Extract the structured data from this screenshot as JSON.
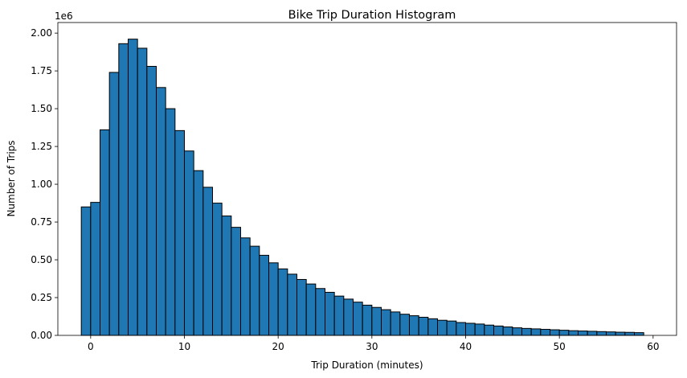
{
  "chart_data": {
    "type": "bar",
    "title": "Bike Trip Duration Histogram",
    "xlabel": "Trip Duration (minutes)",
    "ylabel": "Number of Trips",
    "y_offset_label": "1e6",
    "xlim": [
      -3.5,
      62.5
    ],
    "ylim": [
      0,
      2.07
    ],
    "xticks": [
      0,
      10,
      20,
      30,
      40,
      50,
      60
    ],
    "xtick_labels": [
      "0",
      "10",
      "20",
      "30",
      "40",
      "50",
      "60"
    ],
    "yticks": [
      0,
      0.25,
      0.5,
      0.75,
      1.0,
      1.25,
      1.5,
      1.75,
      2.0
    ],
    "ytick_labels": [
      "0.00",
      "0.25",
      "0.50",
      "0.75",
      "1.00",
      "1.25",
      "1.50",
      "1.75",
      "2.00"
    ],
    "grid": false,
    "bar_color": "#1f77b4",
    "edge_color": "#000000",
    "bin_width": 1,
    "bin_start": -1,
    "values": [
      0.85,
      0.88,
      1.36,
      1.74,
      1.93,
      1.96,
      1.9,
      1.78,
      1.64,
      1.5,
      1.355,
      1.22,
      1.09,
      0.98,
      0.875,
      0.79,
      0.715,
      0.645,
      0.59,
      0.53,
      0.48,
      0.44,
      0.405,
      0.37,
      0.34,
      0.31,
      0.285,
      0.26,
      0.24,
      0.22,
      0.2,
      0.185,
      0.17,
      0.155,
      0.14,
      0.13,
      0.12,
      0.11,
      0.1,
      0.095,
      0.085,
      0.08,
      0.075,
      0.068,
      0.062,
      0.056,
      0.05,
      0.046,
      0.043,
      0.04,
      0.037,
      0.034,
      0.031,
      0.029,
      0.027,
      0.025,
      0.023,
      0.021,
      0.02,
      0.018
    ]
  }
}
